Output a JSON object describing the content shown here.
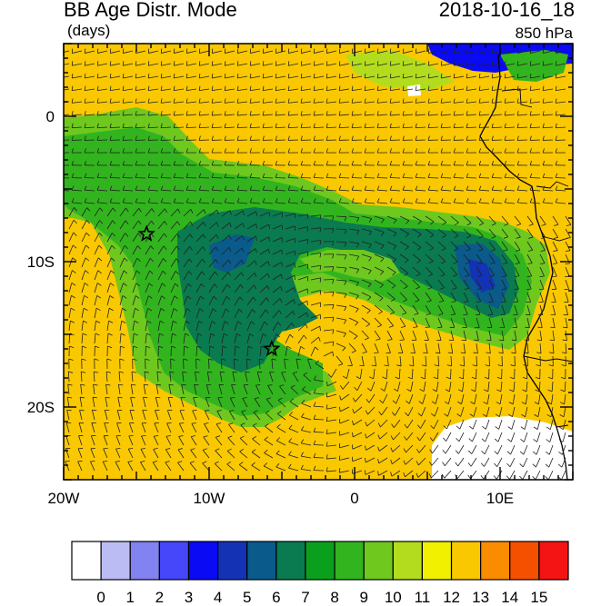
{
  "header": {
    "title": "BB Age Distr. Mode",
    "units": "(days)",
    "datetime": "2018-10-16_18",
    "level": "850 hPa"
  },
  "map": {
    "lon_range": [
      -20,
      15
    ],
    "lat_range": [
      -25,
      5
    ],
    "x_ticks": [
      {
        "lon": -20,
        "label": "20W"
      },
      {
        "lon": -10,
        "label": "10W"
      },
      {
        "lon": 0,
        "label": "0"
      },
      {
        "lon": 10,
        "label": "10E"
      }
    ],
    "y_ticks": [
      {
        "lat": 0,
        "label": "0"
      },
      {
        "lat": -10,
        "label": "10S"
      },
      {
        "lat": -20,
        "label": "20S"
      }
    ],
    "stars": [
      {
        "lon": -14.3,
        "lat": -8.1
      },
      {
        "lon": -5.7,
        "lat": -16.0
      }
    ]
  },
  "colorbar": {
    "labels": [
      "0",
      "1",
      "2",
      "3",
      "4",
      "5",
      "6",
      "7",
      "8",
      "9",
      "10",
      "11",
      "12",
      "13",
      "14",
      "15"
    ],
    "colors": [
      "#ffffff",
      "#bcbcf5",
      "#8282f0",
      "#4646fa",
      "#0a0af5",
      "#1432b4",
      "#0a5a8c",
      "#0a7a50",
      "#0aa01e",
      "#32b41e",
      "#6ec81e",
      "#b4dc1e",
      "#f0f000",
      "#fac800",
      "#fa8c00",
      "#f55000",
      "#f51414"
    ]
  }
}
